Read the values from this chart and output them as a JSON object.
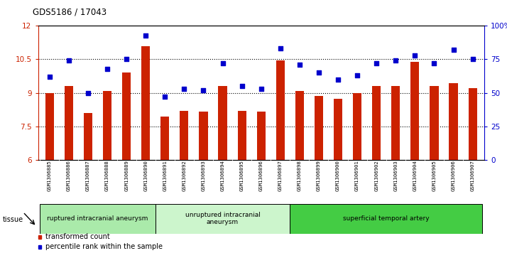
{
  "title": "GDS5186 / 17043",
  "samples": [
    "GSM1306885",
    "GSM1306886",
    "GSM1306887",
    "GSM1306888",
    "GSM1306889",
    "GSM1306890",
    "GSM1306891",
    "GSM1306892",
    "GSM1306893",
    "GSM1306894",
    "GSM1306895",
    "GSM1306896",
    "GSM1306897",
    "GSM1306898",
    "GSM1306899",
    "GSM1306900",
    "GSM1306901",
    "GSM1306902",
    "GSM1306903",
    "GSM1306904",
    "GSM1306905",
    "GSM1306906",
    "GSM1306907"
  ],
  "bar_values": [
    9.0,
    9.3,
    8.1,
    9.1,
    9.9,
    11.1,
    7.95,
    8.2,
    8.15,
    9.3,
    8.2,
    8.15,
    10.45,
    9.1,
    8.85,
    8.75,
    9.0,
    9.3,
    9.3,
    10.4,
    9.3,
    9.45,
    9.2
  ],
  "dot_values": [
    62,
    74,
    50,
    68,
    75,
    93,
    47,
    53,
    52,
    72,
    55,
    53,
    83,
    71,
    65,
    60,
    63,
    72,
    74,
    78,
    72,
    82,
    75
  ],
  "bar_color": "#cc2200",
  "dot_color": "#0000cc",
  "ylim_left": [
    6,
    12
  ],
  "ylim_right": [
    0,
    100
  ],
  "yticks_left": [
    6,
    7.5,
    9,
    10.5,
    12
  ],
  "yticks_right": [
    0,
    25,
    50,
    75,
    100
  ],
  "ytick_labels_right": [
    "0",
    "25",
    "50",
    "75",
    "100%"
  ],
  "groups": [
    {
      "label": "ruptured intracranial aneurysm",
      "start": 0,
      "end": 5,
      "color": "#aaeaaa"
    },
    {
      "label": "unruptured intracranial\naneurysm",
      "start": 6,
      "end": 12,
      "color": "#ccf5cc"
    },
    {
      "label": "superficial temporal artery",
      "start": 13,
      "end": 22,
      "color": "#44cc44"
    }
  ],
  "tissue_label": "tissue",
  "legend_bar_label": "transformed count",
  "legend_dot_label": "percentile rank within the sample",
  "xlabel_bg": "#d0d0d0"
}
